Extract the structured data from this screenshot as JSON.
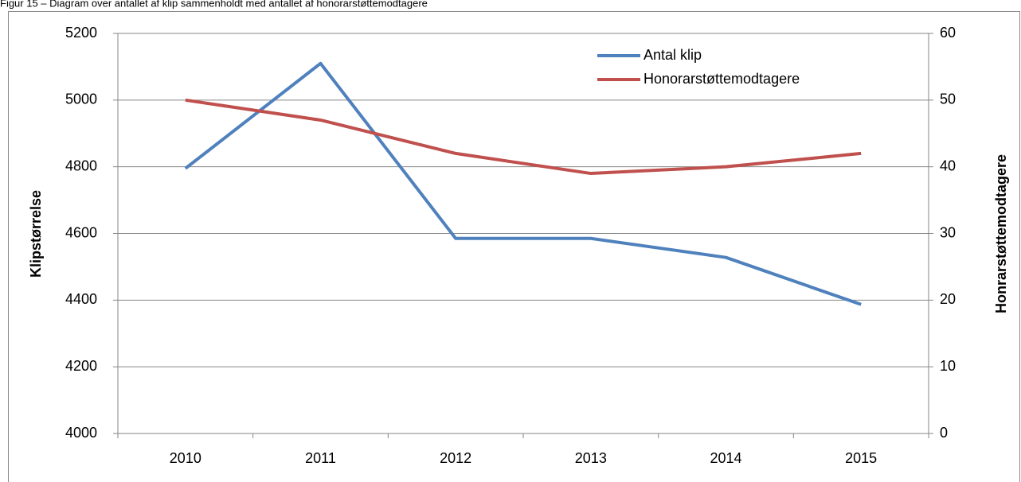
{
  "chart_data": {
    "type": "line",
    "title": "Figur 15 – Diagram over antallet af klip sammenholdt med antallet af honorarstøttemodtagere",
    "y_label": "Klipstørrelse",
    "y2_label": "Honrarstøttemodtagere",
    "categories": [
      "2010",
      "2011",
      "2012",
      "2013",
      "2014",
      "2015"
    ],
    "series": [
      {
        "name": "Antal klip",
        "color": "#4f81bd",
        "values": [
          4795,
          5110,
          4585,
          4585,
          4528,
          4387
        ]
      },
      {
        "name": "Honorarstøttemodtagere",
        "color": "#c0504d",
        "axis": "y2",
        "values": [
          50,
          47,
          42,
          39,
          40,
          42
        ]
      }
    ],
    "ylim": [
      4000,
      5200
    ],
    "yticks": [
      4000,
      4200,
      4400,
      4600,
      4800,
      5000,
      5200
    ],
    "y2lim": [
      0,
      60
    ],
    "y2ticks": [
      0,
      10,
      20,
      30,
      40,
      50,
      60
    ],
    "grid": true,
    "legend": "top-right"
  }
}
